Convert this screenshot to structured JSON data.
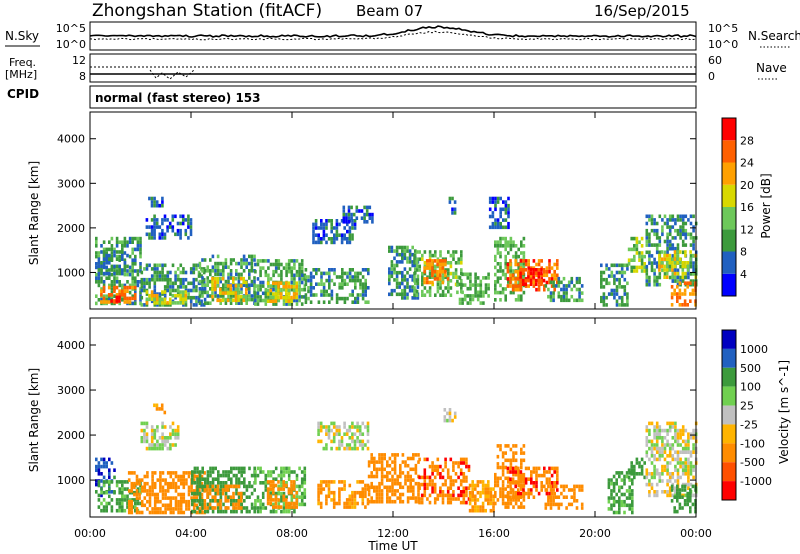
{
  "header": {
    "station": "Zhongshan Station (fitACF)",
    "beam": "Beam 07",
    "date": "16/Sep/2015"
  },
  "nsky_panel": {
    "left_label": "N.Sky",
    "right_label": "N.Search",
    "tick_top": "10^5",
    "tick_bottom": "10^0"
  },
  "freq_panel": {
    "label_line1": "Freq.",
    "label_line2": "[MHz]",
    "tick_top": "12",
    "tick_bottom": "8",
    "right_label": "Nave",
    "right_tick_top": "60",
    "right_tick_bottom": "0"
  },
  "cpid": {
    "label": "CPID",
    "value": "normal (fast stereo) 153"
  },
  "colors": {
    "power_scale": [
      "#0000ff",
      "#2060c0",
      "#3c9a3c",
      "#6dc85a",
      "#d8d800",
      "#ffa000",
      "#ff6000",
      "#ff0000"
    ],
    "velocity_scale": [
      "#ff0000",
      "#ff5000",
      "#ff8c00",
      "#ffb400",
      "#c0c0c0",
      "#70d050",
      "#3c9a3c",
      "#2060c0",
      "#0000c0"
    ]
  },
  "chart_data": [
    {
      "type": "heatmap",
      "name": "power",
      "xlabel": "",
      "ylabel": "Slant Range [km]",
      "x_ticks": [
        "00:00",
        "04:00",
        "08:00",
        "12:00",
        "16:00",
        "20:00",
        "00:00"
      ],
      "xlim": [
        0,
        24
      ],
      "ylim": [
        180,
        4600
      ],
      "y_ticks": [
        1000,
        2000,
        3000,
        4000
      ],
      "colorbar": {
        "label": "Power [dB]",
        "range": [
          0,
          32
        ],
        "ticks": [
          "4",
          "8",
          "12",
          "16",
          "20",
          "24",
          "28"
        ]
      },
      "patches": [
        {
          "t": [
            0.2,
            2.0
          ],
          "r": [
            300,
            1800
          ],
          "v": 10
        },
        {
          "t": [
            0.4,
            1.8
          ],
          "r": [
            300,
            700
          ],
          "v": 24
        },
        {
          "t": [
            0.7,
            1.3
          ],
          "r": [
            320,
            480
          ],
          "v": 30
        },
        {
          "t": [
            0.3,
            1.5
          ],
          "r": [
            1000,
            1500
          ],
          "v": 8
        },
        {
          "t": [
            2.0,
            4.5
          ],
          "r": [
            300,
            1200
          ],
          "v": 9
        },
        {
          "t": [
            2.2,
            3.8
          ],
          "r": [
            350,
            600
          ],
          "v": 18
        },
        {
          "t": [
            2.3,
            2.9
          ],
          "r": [
            2500,
            2700
          ],
          "v": 6
        },
        {
          "t": [
            2.2,
            4.0
          ],
          "r": [
            1800,
            2300
          ],
          "v": 6
        },
        {
          "t": [
            4.3,
            6.5
          ],
          "r": [
            300,
            1400
          ],
          "v": 10
        },
        {
          "t": [
            4.8,
            6.2
          ],
          "r": [
            400,
            900
          ],
          "v": 18
        },
        {
          "t": [
            6.5,
            8.5
          ],
          "r": [
            300,
            1300
          ],
          "v": 11
        },
        {
          "t": [
            7.0,
            8.2
          ],
          "r": [
            350,
            800
          ],
          "v": 19
        },
        {
          "t": [
            8.8,
            10.5
          ],
          "r": [
            1700,
            2200
          ],
          "v": 7
        },
        {
          "t": [
            8.5,
            11.0
          ],
          "r": [
            300,
            1100
          ],
          "v": 10
        },
        {
          "t": [
            10.0,
            11.2
          ],
          "r": [
            2100,
            2500
          ],
          "v": 6
        },
        {
          "t": [
            11.8,
            13.0
          ],
          "r": [
            400,
            1600
          ],
          "v": 9
        },
        {
          "t": [
            12.8,
            14.7
          ],
          "r": [
            500,
            1500
          ],
          "v": 13
        },
        {
          "t": [
            13.2,
            14.2
          ],
          "r": [
            800,
            1300
          ],
          "v": 24
        },
        {
          "t": [
            14.2,
            14.5
          ],
          "r": [
            2300,
            2700
          ],
          "v": 6
        },
        {
          "t": [
            14.5,
            15.8
          ],
          "r": [
            300,
            1000
          ],
          "v": 12
        },
        {
          "t": [
            15.8,
            16.6
          ],
          "r": [
            2000,
            2700
          ],
          "v": 6
        },
        {
          "t": [
            16.0,
            17.2
          ],
          "r": [
            400,
            1800
          ],
          "v": 12
        },
        {
          "t": [
            16.5,
            18.5
          ],
          "r": [
            600,
            1300
          ],
          "v": 25
        },
        {
          "t": [
            17.0,
            18.0
          ],
          "r": [
            700,
            1100
          ],
          "v": 30
        },
        {
          "t": [
            18.0,
            19.5
          ],
          "r": [
            400,
            900
          ],
          "v": 10
        },
        {
          "t": [
            20.2,
            21.3
          ],
          "r": [
            300,
            1200
          ],
          "v": 10
        },
        {
          "t": [
            21.3,
            22.0
          ],
          "r": [
            1000,
            1800
          ],
          "v": 14
        },
        {
          "t": [
            22.0,
            24.0
          ],
          "r": [
            700,
            2300
          ],
          "v": 9
        },
        {
          "t": [
            22.5,
            24.0
          ],
          "r": [
            900,
            1500
          ],
          "v": 18
        },
        {
          "t": [
            23.0,
            24.0
          ],
          "r": [
            300,
            800
          ],
          "v": 24
        }
      ]
    },
    {
      "type": "heatmap",
      "name": "velocity",
      "xlabel": "Time UT",
      "ylabel": "Slant Range [km]",
      "x_ticks": [
        "00:00",
        "04:00",
        "08:00",
        "12:00",
        "16:00",
        "20:00",
        "00:00"
      ],
      "xlim": [
        0,
        24
      ],
      "ylim": [
        180,
        4600
      ],
      "y_ticks": [
        1000,
        2000,
        3000,
        4000
      ],
      "colorbar": {
        "label": "Velocity [m s^-1]",
        "ticks": [
          "1000",
          "500",
          "100",
          "25",
          "-25",
          "-100",
          "-500",
          "-1000"
        ]
      },
      "patches": [
        {
          "t": [
            0.2,
            1.0
          ],
          "r": [
            700,
            1500
          ],
          "v": 800
        },
        {
          "t": [
            0.3,
            2.0
          ],
          "r": [
            300,
            1000
          ],
          "v": 150
        },
        {
          "t": [
            1.5,
            4.5
          ],
          "r": [
            300,
            1200
          ],
          "v": -300
        },
        {
          "t": [
            2.0,
            3.5
          ],
          "r": [
            1700,
            2300
          ],
          "v": 0
        },
        {
          "t": [
            2.5,
            3.0
          ],
          "r": [
            2500,
            2700
          ],
          "v": -100
        },
        {
          "t": [
            4.0,
            6.5
          ],
          "r": [
            300,
            1300
          ],
          "v": 200
        },
        {
          "t": [
            4.5,
            6.0
          ],
          "r": [
            400,
            900
          ],
          "v": -200
        },
        {
          "t": [
            6.5,
            8.5
          ],
          "r": [
            300,
            1300
          ],
          "v": 100
        },
        {
          "t": [
            7.0,
            8.2
          ],
          "r": [
            400,
            1000
          ],
          "v": -300
        },
        {
          "t": [
            9.0,
            11.0
          ],
          "r": [
            1700,
            2300
          ],
          "v": 10
        },
        {
          "t": [
            9.0,
            11.0
          ],
          "r": [
            400,
            1000
          ],
          "v": -150
        },
        {
          "t": [
            11.0,
            13.0
          ],
          "r": [
            500,
            1600
          ],
          "v": -200
        },
        {
          "t": [
            13.0,
            15.0
          ],
          "r": [
            500,
            1500
          ],
          "v": -400
        },
        {
          "t": [
            14.0,
            14.5
          ],
          "r": [
            2300,
            2600
          ],
          "v": 0
        },
        {
          "t": [
            15.0,
            16.0
          ],
          "r": [
            300,
            1000
          ],
          "v": -100
        },
        {
          "t": [
            16.0,
            17.2
          ],
          "r": [
            400,
            1800
          ],
          "v": -250
        },
        {
          "t": [
            16.5,
            18.5
          ],
          "r": [
            600,
            1300
          ],
          "v": -400
        },
        {
          "t": [
            18.0,
            19.5
          ],
          "r": [
            400,
            900
          ],
          "v": -200
        },
        {
          "t": [
            20.5,
            21.5
          ],
          "r": [
            300,
            1200
          ],
          "v": 150
        },
        {
          "t": [
            21.3,
            22.0
          ],
          "r": [
            1100,
            1500
          ],
          "v": 300
        },
        {
          "t": [
            22.0,
            24.0
          ],
          "r": [
            700,
            2300
          ],
          "v": 0
        },
        {
          "t": [
            23.0,
            24.0
          ],
          "r": [
            300,
            900
          ],
          "v": 300
        }
      ]
    }
  ]
}
